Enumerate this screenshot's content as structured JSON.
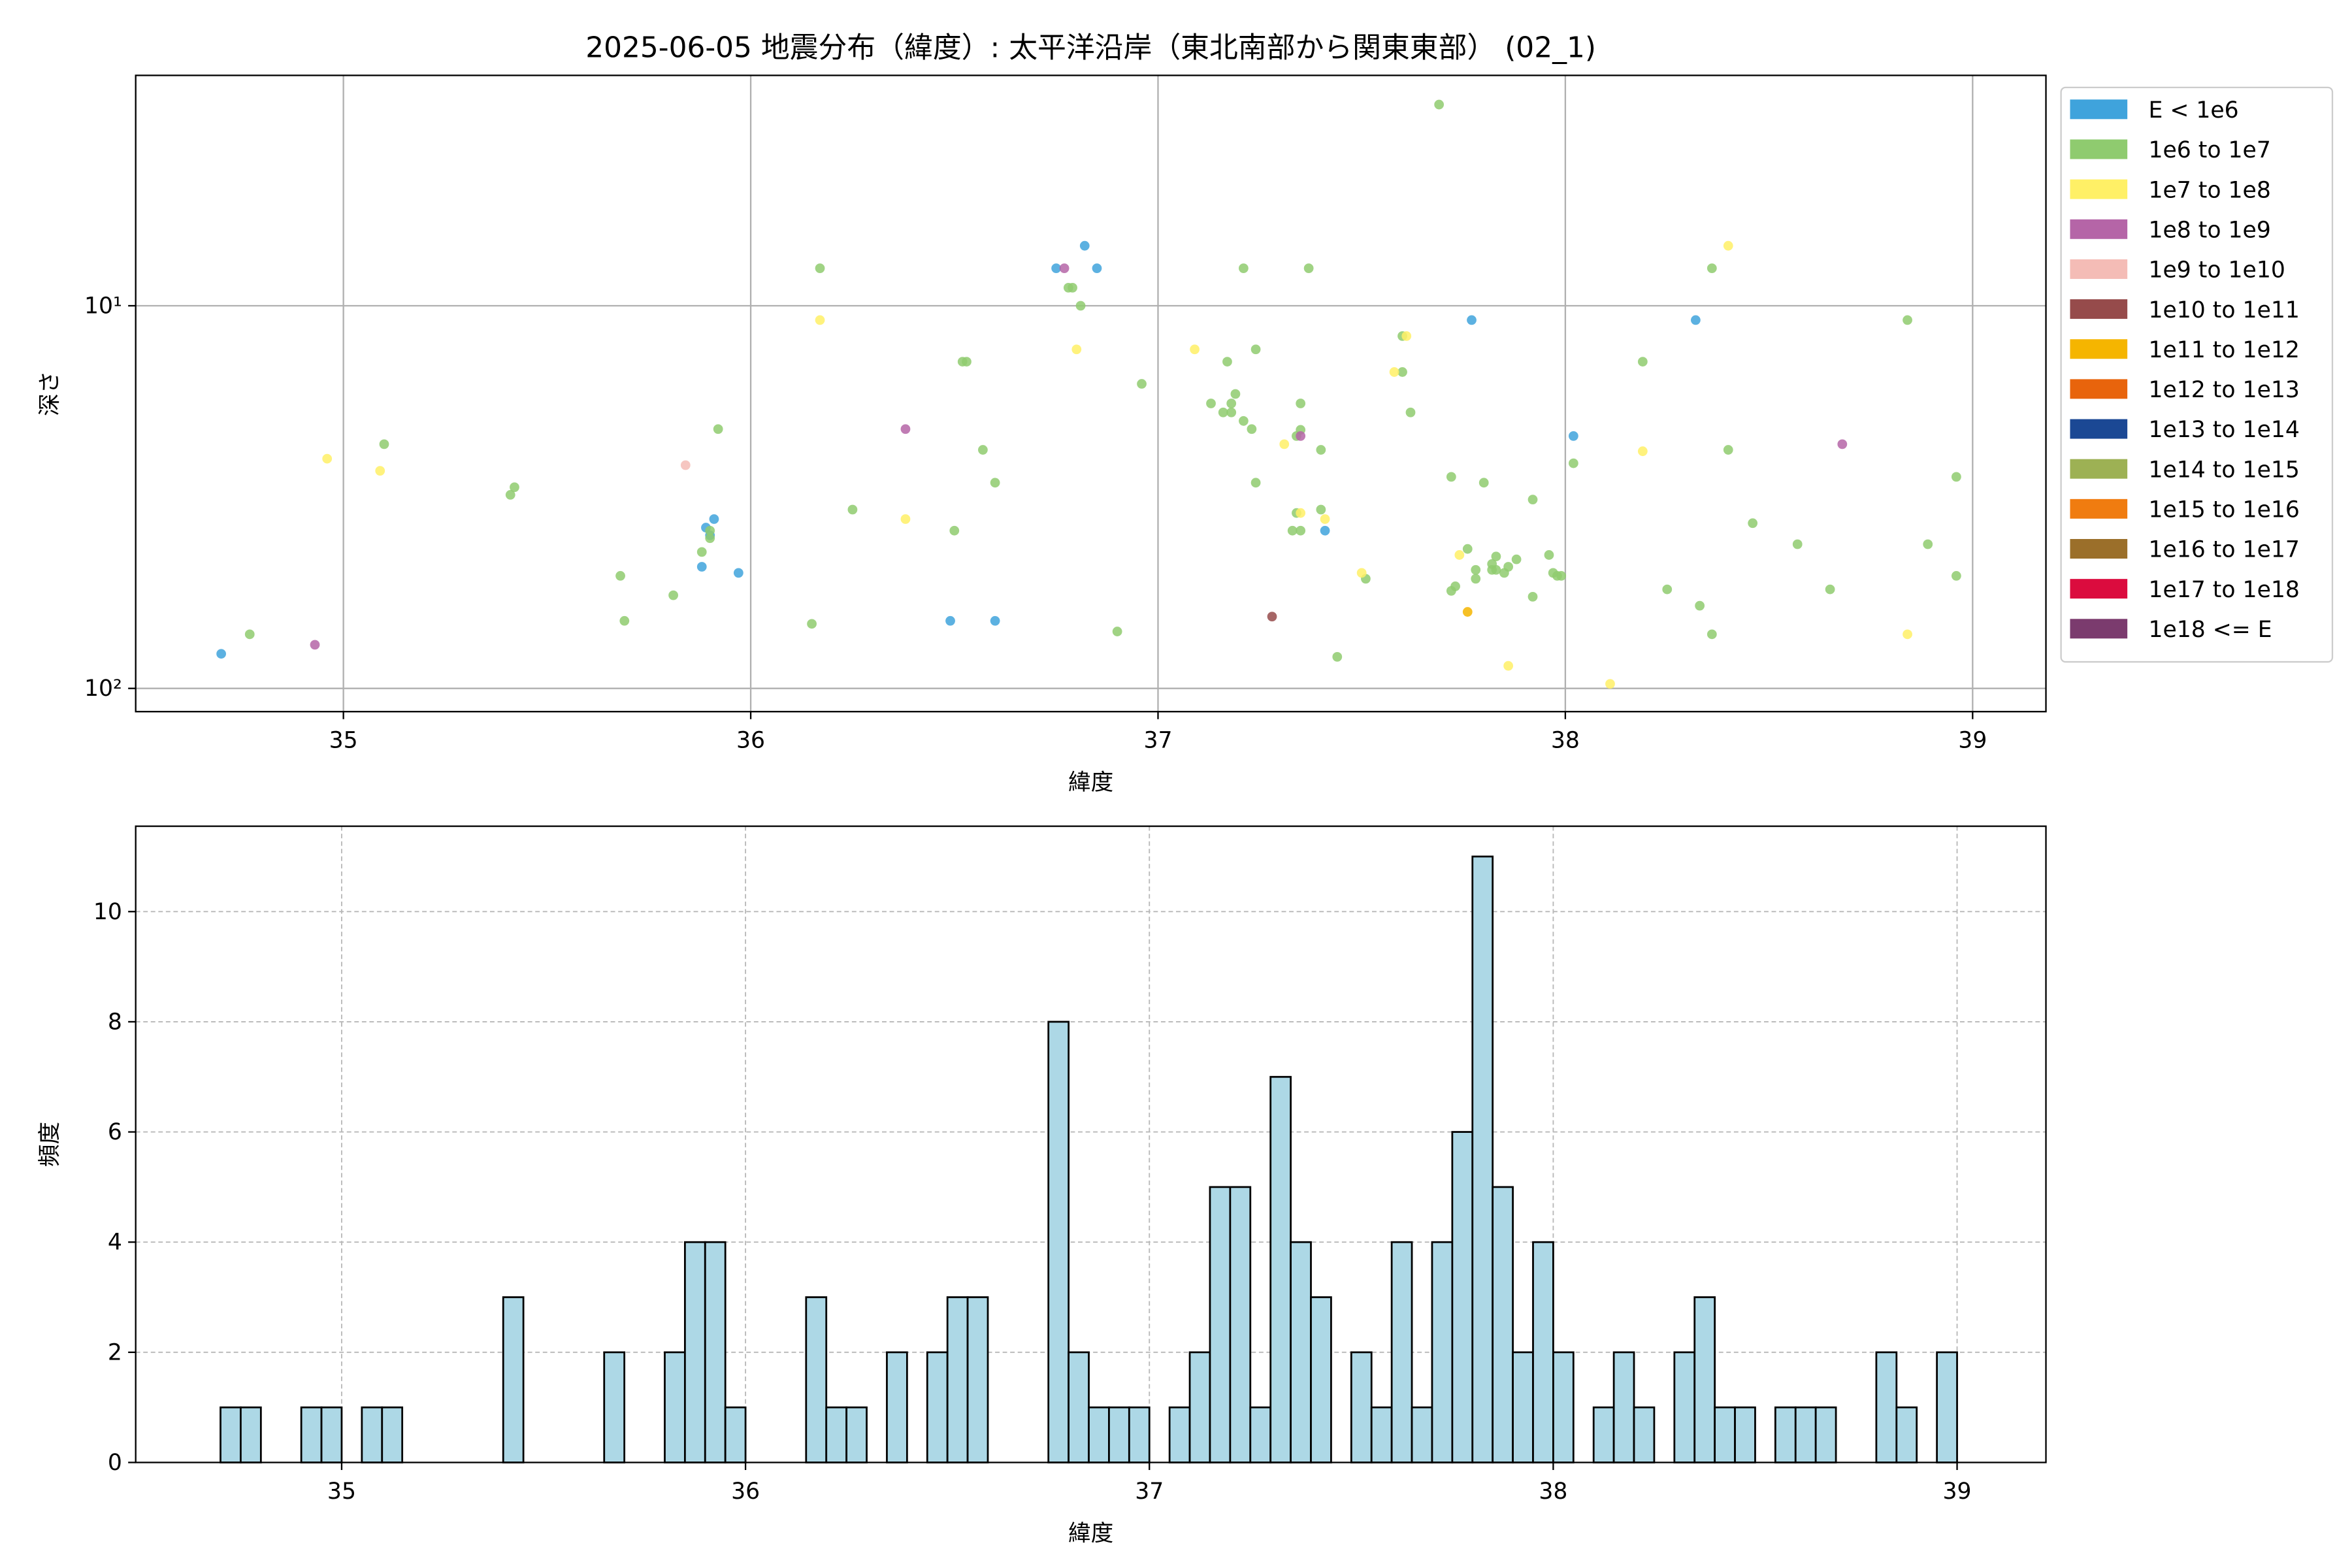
{
  "chart_data": [
    {
      "type": "scatter",
      "title": "2025-06-05 地震分布（緯度）: 太平洋沿岸（東北南部から関東東部） (02_1)",
      "x_label": "緯度",
      "y_label": "深さ",
      "xlim": [
        34.49,
        39.18
      ],
      "xticks": [
        35,
        36,
        37,
        38,
        39
      ],
      "ylim": [
        115,
        2.5
      ],
      "yscale": "log",
      "yticks": [
        {
          "value": 10,
          "label": "10¹"
        },
        {
          "value": 100,
          "label": "10²"
        }
      ],
      "grid": true,
      "legend": "outside right",
      "series": [
        {
          "name": "E < 1e6",
          "color": "#3fa3dc",
          "x": [
            34.7,
            35.88,
            35.89,
            35.9,
            35.91,
            35.97,
            36.49,
            36.6,
            36.75,
            36.82,
            36.85,
            37.41,
            37.77,
            38.02,
            38.32
          ],
          "values": [
            81.2,
            48.1,
            38.0,
            39.8,
            36.1,
            49.9,
            66.6,
            66.6,
            7.98,
            6.97,
            7.98,
            38.7,
            10.9,
            21.9,
            10.9
          ]
        },
        {
          "name": "1e6 to 1e7",
          "color": "#8fcb6f",
          "x": [
            34.77,
            35.1,
            35.41,
            35.42,
            35.68,
            35.69,
            35.81,
            35.88,
            35.9,
            35.9,
            35.92,
            36.15,
            36.17,
            36.25,
            36.5,
            36.52,
            36.53,
            36.57,
            36.6,
            36.78,
            36.79,
            36.81,
            36.9,
            36.96,
            37.13,
            37.16,
            37.17,
            37.18,
            37.18,
            37.19,
            37.21,
            37.21,
            37.23,
            37.24,
            37.24,
            37.33,
            37.35,
            37.34,
            37.35,
            37.34,
            37.35,
            37.37,
            37.4,
            37.4,
            37.44,
            37.51,
            37.6,
            37.6,
            37.62,
            37.69,
            37.72,
            37.72,
            37.73,
            37.76,
            37.78,
            37.78,
            37.8,
            37.82,
            37.82,
            37.83,
            37.83,
            37.85,
            37.86,
            37.88,
            37.92,
            37.92,
            37.96,
            37.97,
            37.98,
            37.99,
            38.02,
            38.19,
            38.25,
            38.33,
            38.36,
            38.36,
            38.4,
            38.46,
            38.57,
            38.65,
            38.84,
            38.89,
            38.96,
            38.96
          ],
          "values": [
            72.2,
            23.0,
            31.2,
            29.8,
            50.8,
            66.6,
            57.1,
            44.0,
            40.5,
            38.7,
            21.0,
            67.8,
            7.98,
            34.1,
            38.7,
            14.0,
            14.0,
            23.8,
            29.0,
            8.97,
            8.97,
            10.0,
            71.0,
            16.0,
            18.0,
            19.0,
            14.0,
            18.0,
            19.0,
            17.0,
            20.0,
            7.98,
            21.0,
            29.0,
            13.0,
            38.7,
            38.7,
            34.8,
            21.1,
            21.9,
            18.0,
            7.98,
            23.8,
            34.1,
            82.7,
            51.7,
            12.0,
            14.9,
            19.0,
            2.98,
            28.0,
            55.6,
            54.1,
            43.2,
            51.7,
            49.0,
            29.0,
            49.0,
            47.3,
            45.2,
            49.0,
            49.9,
            48.1,
            46.0,
            32.1,
            57.6,
            44.8,
            49.9,
            50.8,
            50.8,
            25.8,
            14.0,
            55.1,
            60.8,
            72.2,
            7.98,
            23.8,
            37.0,
            42.0,
            55.1,
            10.9,
            42.0,
            28.0,
            50.8
          ]
        },
        {
          "name": "1e7 to 1e8",
          "color": "#fff066",
          "x": [
            34.96,
            35.09,
            36.17,
            36.38,
            36.8,
            37.09,
            37.31,
            37.35,
            37.41,
            37.5,
            37.58,
            37.61,
            37.74,
            37.86,
            38.11,
            38.19,
            38.4,
            38.84
          ],
          "values": [
            25.1,
            27.0,
            10.9,
            36.1,
            13.0,
            13.0,
            23.0,
            34.8,
            36.1,
            49.9,
            14.9,
            12.0,
            44.8,
            87.3,
            97.3,
            24.0,
            6.97,
            72.2
          ]
        },
        {
          "name": "1e8 to 1e9",
          "color": "#b565a7",
          "x": [
            34.93,
            36.38,
            36.77,
            37.35,
            38.68
          ],
          "values": [
            76.9,
            21.0,
            7.98,
            21.9,
            23.0
          ]
        },
        {
          "name": "1e9 to 1e10",
          "color": "#f4bcb6",
          "x": [
            35.84
          ],
          "values": [
            26.1
          ]
        },
        {
          "name": "1e10 to 1e11",
          "color": "#964b4b",
          "x": [
            37.28
          ],
          "values": [
            64.9
          ]
        },
        {
          "name": "1e11 to 1e12",
          "color": "#f5b500",
          "x": [
            37.76
          ],
          "values": [
            63.1
          ]
        },
        {
          "name": "1e12 to 1e13",
          "color": "#e8640c",
          "x": [],
          "values": []
        },
        {
          "name": "1e13 to 1e14",
          "color": "#1b4894",
          "x": [],
          "values": []
        },
        {
          "name": "1e14 to 1e15",
          "color": "#9db154",
          "x": [],
          "values": []
        },
        {
          "name": "1e15 to 1e16",
          "color": "#f07c10",
          "x": [],
          "values": []
        },
        {
          "name": "1e16 to 1e17",
          "color": "#9b6f2a",
          "x": [],
          "values": []
        },
        {
          "name": "1e17 to 1e18",
          "color": "#db0c3e",
          "x": [],
          "values": []
        },
        {
          "name": "1e18 <= E",
          "color": "#7b3b6e",
          "x": [],
          "values": []
        }
      ]
    },
    {
      "type": "histogram",
      "x_label": "緯度",
      "y_label": "頻度",
      "color": "#add8e6",
      "edgecolor": "#000000",
      "xlim": [
        34.49,
        39.22
      ],
      "xticks": [
        35,
        36,
        37,
        38,
        39
      ],
      "ylim": [
        0,
        11.55
      ],
      "yticks": [
        0,
        2,
        4,
        6,
        8,
        10
      ],
      "grid": true,
      "bins": [
        34.7,
        34.75,
        34.8,
        34.85,
        34.9,
        34.95,
        35.0,
        35.05,
        35.1,
        35.15,
        35.2,
        35.25,
        35.3,
        35.35,
        35.4,
        35.45,
        35.5,
        35.55,
        35.6,
        35.65,
        35.7,
        35.75,
        35.8,
        35.85,
        35.9,
        35.95,
        36.0,
        36.05,
        36.1,
        36.15,
        36.2,
        36.25,
        36.3,
        36.35,
        36.4,
        36.45,
        36.5,
        36.55,
        36.6,
        36.65,
        36.7,
        36.75,
        36.8,
        36.85,
        36.9,
        36.95,
        37.0,
        37.05,
        37.1,
        37.15,
        37.2,
        37.25,
        37.3,
        37.35,
        37.4,
        37.45,
        37.5,
        37.55,
        37.6,
        37.65,
        37.7,
        37.75,
        37.8,
        37.85,
        37.9,
        37.95,
        38.0,
        38.05,
        38.1,
        38.15,
        38.2,
        38.25,
        38.3,
        38.35,
        38.4,
        38.45,
        38.5,
        38.55,
        38.6,
        38.65,
        38.7,
        38.75,
        38.8,
        38.85,
        38.9,
        38.95,
        39.0
      ],
      "values": [
        1,
        1,
        0,
        0,
        1,
        1,
        0,
        1,
        1,
        0,
        0,
        0,
        0,
        0,
        3,
        0,
        0,
        0,
        0,
        2,
        0,
        0,
        2,
        4,
        4,
        1,
        0,
        0,
        0,
        3,
        1,
        1,
        0,
        2,
        0,
        2,
        3,
        3,
        0,
        0,
        0,
        8,
        2,
        1,
        1,
        1,
        0,
        1,
        2,
        5,
        5,
        1,
        7,
        4,
        3,
        0,
        2,
        1,
        4,
        1,
        4,
        6,
        11,
        5,
        2,
        4,
        2,
        0,
        1,
        2,
        1,
        0,
        2,
        3,
        1,
        1,
        0,
        1,
        1,
        1,
        0,
        0,
        2,
        1,
        0,
        2
      ]
    }
  ]
}
